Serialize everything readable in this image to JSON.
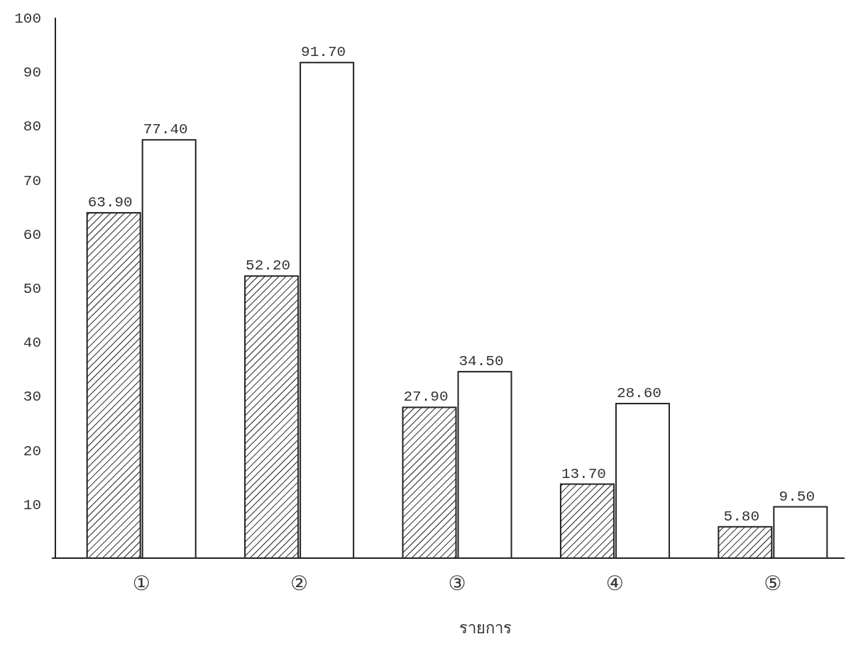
{
  "chart_data": {
    "type": "bar",
    "xlabel": "รายการ",
    "categories": [
      "①",
      "②",
      "③",
      "④",
      "⑤"
    ],
    "series": [
      {
        "color": "#222222",
        "values": [
          63.9,
          52.2,
          27.9,
          13.7,
          5.8
        ],
        "value_labels": [
          "63.90",
          "52.20",
          "27.90",
          "13.70",
          "5.80"
        ]
      },
      {
        "color": "#ffffff",
        "values": [
          77.4,
          91.7,
          34.5,
          28.6,
          9.5
        ],
        "value_labels": [
          "77.40",
          "91.70",
          "34.50",
          "28.60",
          "9.50"
        ]
      }
    ],
    "ylim": [
      0,
      100
    ],
    "yticks": [
      10,
      20,
      30,
      40,
      50,
      60,
      70,
      80,
      90,
      100
    ],
    "grid": false
  }
}
